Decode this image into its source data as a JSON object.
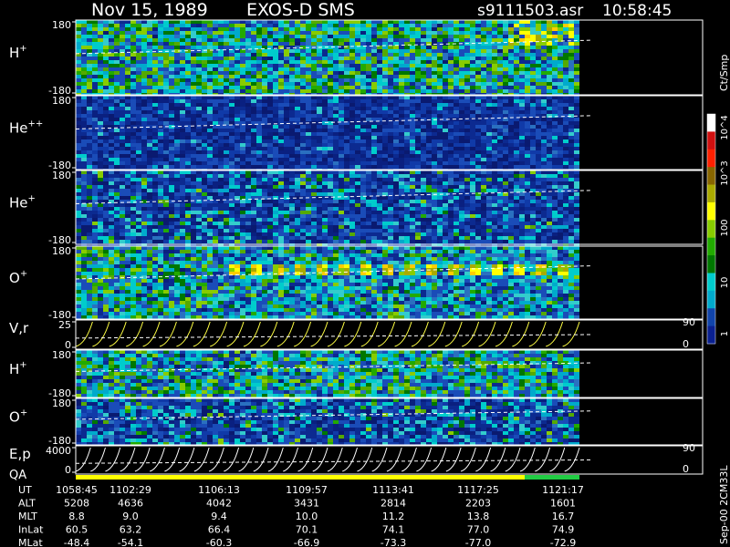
{
  "header": {
    "date": "Nov 15, 1989",
    "instrument": "EXOS-D SMS",
    "file": "s9111503.asr",
    "time": "10:58:45"
  },
  "colorbar": {
    "unit_label": "Ct/Smp",
    "ticks": [
      "10^4",
      "10^3",
      "100",
      "10",
      "1"
    ],
    "colors": [
      "#ffffff",
      "#d01010",
      "#ff2000",
      "#886600",
      "#aaaa00",
      "#ffff00",
      "#88cc00",
      "#22aa00",
      "#007700",
      "#00cccc",
      "#00aacc",
      "#1144aa",
      "#0a2090"
    ]
  },
  "side_label": "Sep-00 2CM33L",
  "chart_data": [
    {
      "type": "heatmap",
      "name": "panel-h-plus",
      "label": "H",
      "sup": "+",
      "ylim": [
        -180,
        180
      ],
      "yticks": [
        "180",
        "-180"
      ],
      "density": "high"
    },
    {
      "type": "heatmap",
      "name": "panel-he-plusplus",
      "label": "He",
      "sup": "++",
      "ylim": [
        -180,
        180
      ],
      "yticks": [
        "180",
        "-180"
      ],
      "density": "low"
    },
    {
      "type": "heatmap",
      "name": "panel-he-plus",
      "label": "He",
      "sup": "+",
      "ylim": [
        -180,
        180
      ],
      "yticks": [
        "180",
        "-180"
      ],
      "density": "medium"
    },
    {
      "type": "heatmap",
      "name": "panel-o-plus",
      "label": "O",
      "sup": "+",
      "ylim": [
        -180,
        180
      ],
      "yticks": [
        "180",
        "-180"
      ],
      "density": "high"
    },
    {
      "type": "line",
      "name": "panel-vr",
      "label": "V,r",
      "ylim": [
        0,
        25
      ],
      "yticks": [
        "25",
        "0"
      ],
      "right_ticks": [
        "90",
        "0"
      ]
    },
    {
      "type": "heatmap",
      "name": "panel-h-plus-2",
      "label": "H",
      "sup": "+",
      "ylim": [
        -180,
        180
      ],
      "yticks": [
        "180",
        "-180"
      ],
      "density": "high"
    },
    {
      "type": "heatmap",
      "name": "panel-o-plus-2",
      "label": "O",
      "sup": "+",
      "ylim": [
        -180,
        180
      ],
      "yticks": [
        "180",
        "-180"
      ],
      "density": "medium"
    },
    {
      "type": "line",
      "name": "panel-ep",
      "label": "E,p",
      "ylim": [
        0,
        4000
      ],
      "yticks": [
        "4000",
        "0"
      ],
      "right_ticks": [
        "90",
        "0"
      ]
    }
  ],
  "qa_label": "QA",
  "ephemeris": {
    "rows": [
      {
        "label": "UT",
        "values": [
          "1058:45",
          "1102:29",
          "1106:13",
          "1109:57",
          "1113:41",
          "1117:25",
          "1121:17"
        ]
      },
      {
        "label": "ALT",
        "values": [
          "5208",
          "4636",
          "4042",
          "3431",
          "2814",
          "2203",
          "1601"
        ]
      },
      {
        "label": "MLT",
        "values": [
          "8.8",
          "9.0",
          "9.4",
          "10.0",
          "11.2",
          "13.8",
          "16.7"
        ]
      },
      {
        "label": "InLat",
        "values": [
          "60.5",
          "63.2",
          "66.4",
          "70.1",
          "74.1",
          "77.0",
          "74.9"
        ]
      },
      {
        "label": "MLat",
        "values": [
          "-48.4",
          "-54.1",
          "-60.3",
          "-66.9",
          "-73.3",
          "-77.0",
          "-72.9"
        ]
      }
    ]
  }
}
